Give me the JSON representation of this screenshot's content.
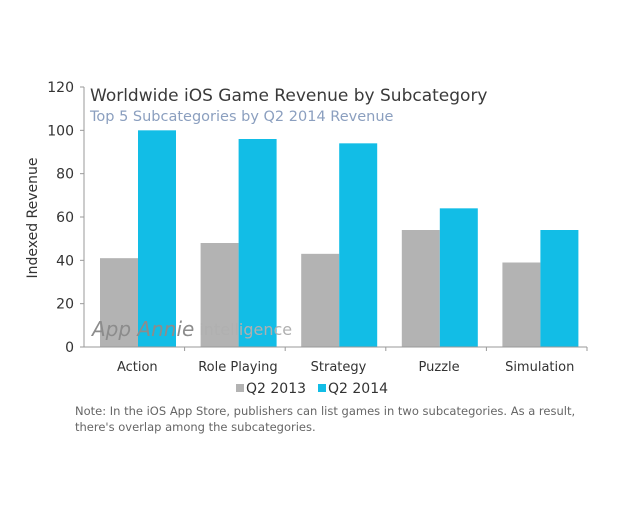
{
  "chart_data": {
    "type": "bar",
    "title": "Worldwide iOS Game Revenue by Subcategory",
    "subtitle": "Top 5 Subcategories by Q2 2014 Revenue",
    "xlabel": "",
    "ylabel": "Indexed Revenue",
    "ylim": [
      0,
      120
    ],
    "yticks": [
      0,
      20,
      40,
      60,
      80,
      100,
      120
    ],
    "categories": [
      "Action",
      "Role Playing",
      "Strategy",
      "Puzzle",
      "Simulation"
    ],
    "series": [
      {
        "name": "Q2 2013",
        "color": "#b3b3b3",
        "values": [
          41,
          48,
          43,
          54,
          39
        ]
      },
      {
        "name": "Q2 2014",
        "color": "#12bde6",
        "values": [
          100,
          96,
          94,
          64,
          54
        ]
      }
    ],
    "grid": false,
    "legend": "bottom-center"
  },
  "watermark": {
    "brand": "App Annie",
    "suffix": "intelligence"
  },
  "note": "Note: In the iOS App Store, publishers can list games in two subcategories. As a result, there's overlap among the subcategories."
}
